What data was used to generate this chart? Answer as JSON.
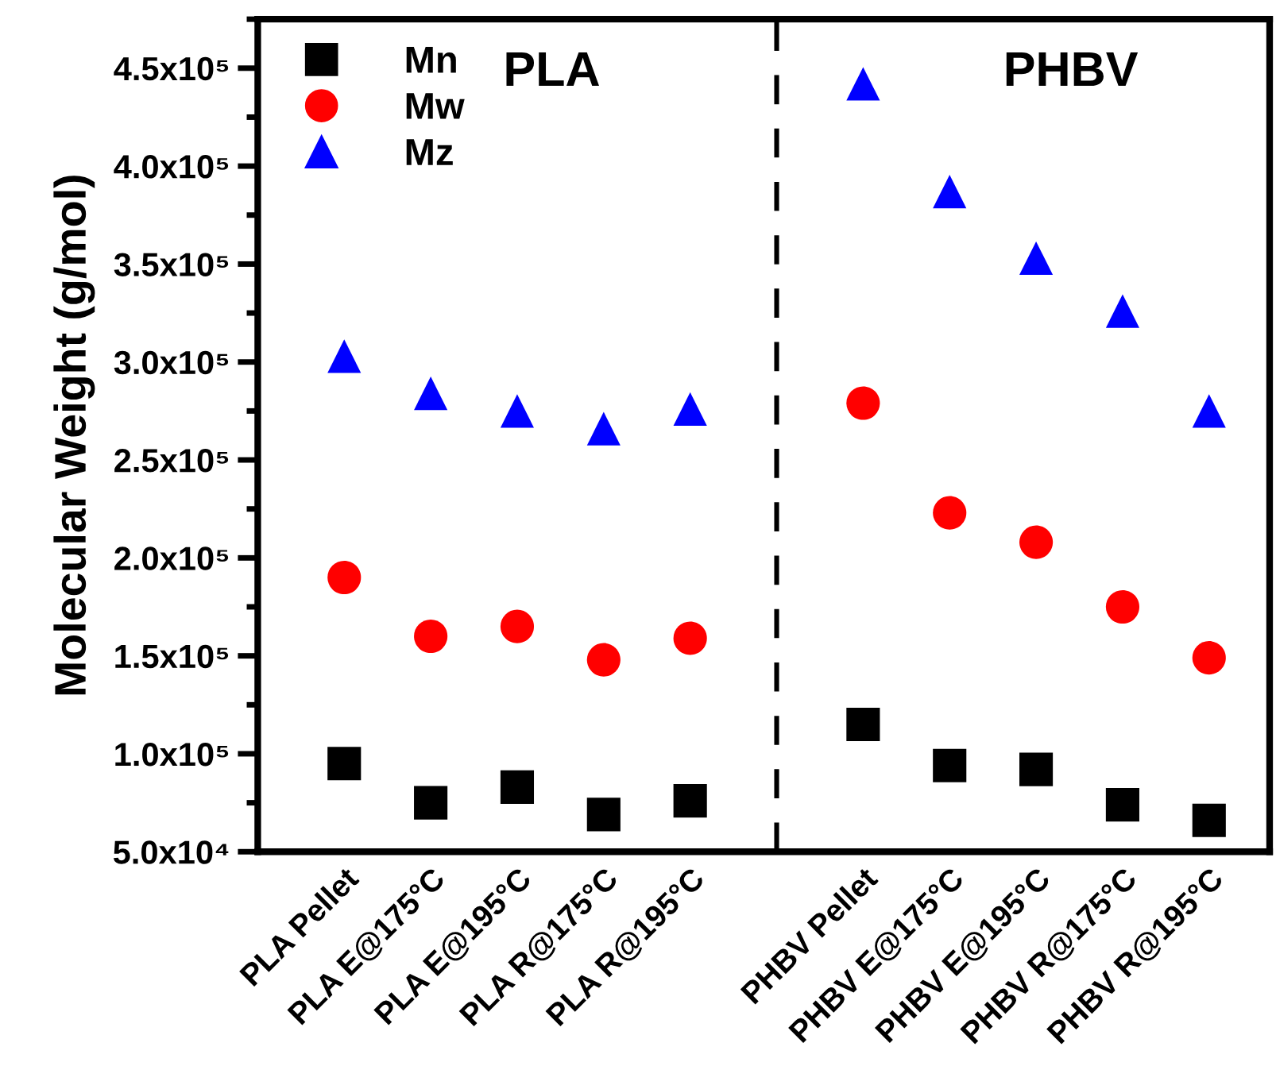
{
  "chart_data": {
    "type": "scatter",
    "ylabel": "Molecular Weight (g/mol)",
    "categories": [
      "PLA Pellet",
      "PLA E@175°C",
      "PLA E@195°C",
      "PLA R@175°C",
      "PLA R@195°C",
      null,
      "PHBV Pellet",
      "PHBV E@175°C",
      "PHBV E@195°C",
      "PHBV R@175°C",
      "PHBV R@195°C"
    ],
    "series": [
      {
        "name": "Mn",
        "color": "#000000",
        "marker": "square",
        "values": [
          95000,
          75000,
          83000,
          69000,
          76000,
          null,
          115000,
          94000,
          92000,
          74000,
          66000
        ]
      },
      {
        "name": "Mw",
        "color": "#ff0000",
        "marker": "circle",
        "values": [
          190000,
          160000,
          165000,
          148000,
          159000,
          null,
          279000,
          223000,
          208000,
          175000,
          149000
        ]
      },
      {
        "name": "Mz",
        "color": "#0000ff",
        "marker": "triangle",
        "values": [
          303000,
          284000,
          275000,
          266000,
          276000,
          null,
          442000,
          387000,
          353000,
          326000,
          275000
        ]
      }
    ],
    "ylim": [
      50000,
      475000
    ],
    "yticks": [
      {
        "value": 50000,
        "label": "5.0x10⁴"
      },
      {
        "value": 100000,
        "label": "1.0x10⁵"
      },
      {
        "value": 150000,
        "label": "1.5x10⁵"
      },
      {
        "value": 200000,
        "label": "2.0x10⁵"
      },
      {
        "value": 250000,
        "label": "2.5x10⁵"
      },
      {
        "value": 300000,
        "label": "3.0x10⁵"
      },
      {
        "value": 350000,
        "label": "3.5x10⁵"
      },
      {
        "value": 400000,
        "label": "4.0x10⁵"
      },
      {
        "value": 450000,
        "label": "4.5x10⁵"
      }
    ],
    "annotations": [
      "PLA",
      "PHBV"
    ],
    "legend": "top left"
  }
}
